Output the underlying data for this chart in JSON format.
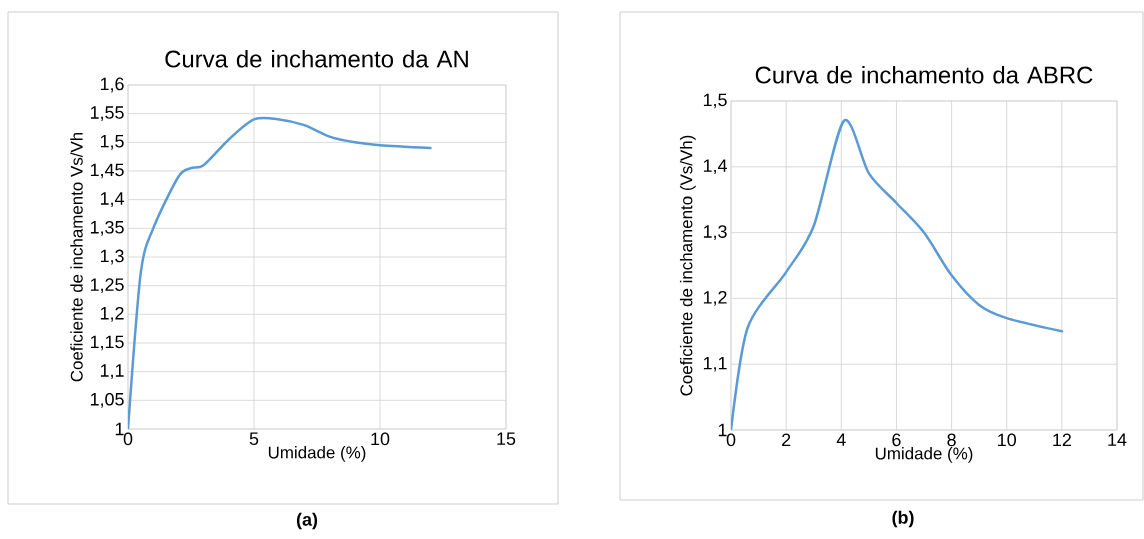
{
  "chart_data": [
    {
      "type": "line",
      "title": "Curva de inchamento da AN",
      "xlabel": "Umidade (%)",
      "ylabel": "Coeficiente de inchamento Vs/Vh",
      "x": [
        0,
        0.5,
        1,
        2,
        2.5,
        3,
        4,
        5,
        6,
        7,
        8,
        9,
        10,
        12
      ],
      "series": [
        {
          "color": "#5b9bd5",
          "values": [
            1,
            1.27,
            1.35,
            1.44,
            1.455,
            1.46,
            1.505,
            1.54,
            1.54,
            1.53,
            1.51,
            1.5,
            1.495,
            1.49
          ]
        }
      ],
      "xlim": [
        0,
        15
      ],
      "xticks": [
        0,
        5,
        10,
        15
      ],
      "ylim": [
        1,
        1.6
      ],
      "yticks": [
        1,
        {
          "value": 1.05,
          "label": "1,05"
        },
        {
          "value": 1.1,
          "label": "1,1"
        },
        {
          "value": 1.15,
          "label": "1,15"
        },
        {
          "value": 1.2,
          "label": "1,2"
        },
        {
          "value": 1.25,
          "label": "1,25"
        },
        {
          "value": 1.3,
          "label": "1,3"
        },
        {
          "value": 1.35,
          "label": "1,35"
        },
        {
          "value": 1.4,
          "label": "1,4"
        },
        {
          "value": 1.45,
          "label": "1,45"
        },
        {
          "value": 1.5,
          "label": "1,5"
        },
        {
          "value": 1.55,
          "label": "1,55"
        },
        {
          "value": 1.6,
          "label": "1,6"
        }
      ],
      "grid": true,
      "annotations": [
        "(a)"
      ]
    },
    {
      "type": "line",
      "title": "Curva de inchamento da ABRC",
      "xlabel": "Umidade (%)",
      "ylabel": "Coeficiente de inchamento (Vs/Vh)",
      "x": [
        0,
        0.6,
        2,
        3,
        4.1,
        5,
        6,
        7,
        8,
        9,
        10,
        12
      ],
      "series": [
        {
          "color": "#5b9bd5",
          "values": [
            1,
            1.155,
            1.24,
            1.31,
            1.47,
            1.39,
            1.345,
            1.3,
            1.235,
            1.19,
            1.17,
            1.15
          ]
        }
      ],
      "xlim": [
        0,
        14
      ],
      "xticks": [
        0,
        2,
        4,
        6,
        8,
        10,
        12,
        14
      ],
      "ylim": [
        1,
        1.5
      ],
      "yticks": [
        1,
        {
          "value": 1.1,
          "label": "1,1"
        },
        {
          "value": 1.2,
          "label": "1,2"
        },
        {
          "value": 1.3,
          "label": "1,3"
        },
        {
          "value": 1.4,
          "label": "1,4"
        },
        {
          "value": 1.5,
          "label": "1,5"
        }
      ],
      "grid": true,
      "annotations": [
        "(b)"
      ]
    }
  ]
}
